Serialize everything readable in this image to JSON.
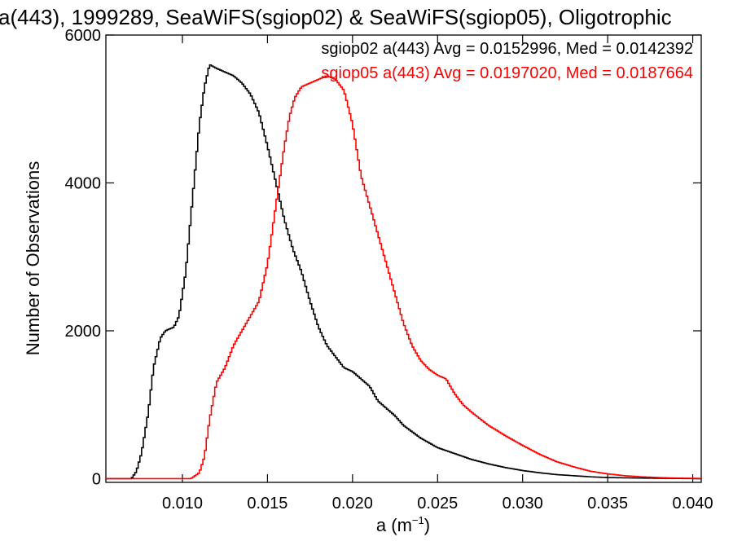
{
  "chart_data": {
    "type": "line",
    "title": "a(443), 1999289, SeaWiFS(sgiop02) & SeaWiFS(sgiop05), Oligotrophic",
    "xlabel": "a (m",
    "xlabel_sup": "−1",
    "xlabel_close": ")",
    "ylabel": "Number of Observations",
    "xlim": [
      0.0055,
      0.0405
    ],
    "ylim": [
      -50,
      6000
    ],
    "x_ticks": [
      0.01,
      0.015,
      0.02,
      0.025,
      0.03,
      0.035,
      0.04
    ],
    "x_tick_labels": [
      "0.010",
      "0.015",
      "0.020",
      "0.025",
      "0.030",
      "0.035",
      "0.040"
    ],
    "y_ticks": [
      0,
      2000,
      4000,
      6000
    ],
    "y_tick_labels": [
      "0",
      "2000",
      "4000",
      "6000"
    ],
    "grid": false,
    "legend_position": "top-right",
    "series": [
      {
        "legend": "sgiop02 a(443) Avg = 0.0152996, Med = 0.0142392",
        "color": "#000000",
        "style": "step",
        "points": [
          [
            0.0055,
            0
          ],
          [
            0.007,
            0
          ],
          [
            0.0073,
            100
          ],
          [
            0.0076,
            350
          ],
          [
            0.008,
            900
          ],
          [
            0.0083,
            1500
          ],
          [
            0.0087,
            1900
          ],
          [
            0.009,
            2000
          ],
          [
            0.0095,
            2050
          ],
          [
            0.0098,
            2200
          ],
          [
            0.0102,
            2800
          ],
          [
            0.0106,
            3800
          ],
          [
            0.011,
            4800
          ],
          [
            0.0113,
            5300
          ],
          [
            0.0116,
            5600
          ],
          [
            0.012,
            5550
          ],
          [
            0.0125,
            5500
          ],
          [
            0.013,
            5450
          ],
          [
            0.0135,
            5350
          ],
          [
            0.014,
            5200
          ],
          [
            0.0145,
            4950
          ],
          [
            0.015,
            4500
          ],
          [
            0.0155,
            4000
          ],
          [
            0.016,
            3500
          ],
          [
            0.0165,
            3100
          ],
          [
            0.017,
            2800
          ],
          [
            0.0175,
            2400
          ],
          [
            0.018,
            2050
          ],
          [
            0.0185,
            1800
          ],
          [
            0.019,
            1650
          ],
          [
            0.0195,
            1500
          ],
          [
            0.02,
            1450
          ],
          [
            0.0205,
            1350
          ],
          [
            0.021,
            1250
          ],
          [
            0.0215,
            1050
          ],
          [
            0.022,
            950
          ],
          [
            0.0225,
            850
          ],
          [
            0.023,
            720
          ],
          [
            0.024,
            550
          ],
          [
            0.025,
            420
          ],
          [
            0.026,
            340
          ],
          [
            0.027,
            260
          ],
          [
            0.028,
            200
          ],
          [
            0.029,
            150
          ],
          [
            0.03,
            110
          ],
          [
            0.031,
            80
          ],
          [
            0.032,
            55
          ],
          [
            0.033,
            40
          ],
          [
            0.034,
            25
          ],
          [
            0.035,
            15
          ],
          [
            0.037,
            8
          ],
          [
            0.039,
            3
          ],
          [
            0.0405,
            0
          ]
        ]
      },
      {
        "legend": "sgiop05 a(443) Avg = 0.0197020, Med = 0.0187664",
        "color": "#ff0000",
        "style": "step",
        "points": [
          [
            0.0055,
            0
          ],
          [
            0.0105,
            0
          ],
          [
            0.011,
            80
          ],
          [
            0.0113,
            300
          ],
          [
            0.0116,
            800
          ],
          [
            0.012,
            1300
          ],
          [
            0.0125,
            1500
          ],
          [
            0.013,
            1800
          ],
          [
            0.0135,
            2000
          ],
          [
            0.014,
            2200
          ],
          [
            0.0145,
            2400
          ],
          [
            0.015,
            2900
          ],
          [
            0.0155,
            3700
          ],
          [
            0.016,
            4500
          ],
          [
            0.0163,
            4900
          ],
          [
            0.0166,
            5150
          ],
          [
            0.017,
            5300
          ],
          [
            0.0175,
            5350
          ],
          [
            0.018,
            5400
          ],
          [
            0.0185,
            5450
          ],
          [
            0.019,
            5400
          ],
          [
            0.0195,
            5250
          ],
          [
            0.02,
            4800
          ],
          [
            0.0205,
            4100
          ],
          [
            0.021,
            3700
          ],
          [
            0.0215,
            3300
          ],
          [
            0.022,
            2900
          ],
          [
            0.0225,
            2500
          ],
          [
            0.023,
            2100
          ],
          [
            0.0235,
            1800
          ],
          [
            0.024,
            1600
          ],
          [
            0.0245,
            1480
          ],
          [
            0.025,
            1400
          ],
          [
            0.0255,
            1350
          ],
          [
            0.026,
            1150
          ],
          [
            0.0265,
            1000
          ],
          [
            0.027,
            900
          ],
          [
            0.028,
            720
          ],
          [
            0.029,
            580
          ],
          [
            0.03,
            450
          ],
          [
            0.031,
            330
          ],
          [
            0.032,
            230
          ],
          [
            0.033,
            160
          ],
          [
            0.034,
            100
          ],
          [
            0.035,
            65
          ],
          [
            0.036,
            40
          ],
          [
            0.037,
            25
          ],
          [
            0.038,
            15
          ],
          [
            0.039,
            8
          ],
          [
            0.0405,
            3
          ]
        ]
      }
    ]
  }
}
